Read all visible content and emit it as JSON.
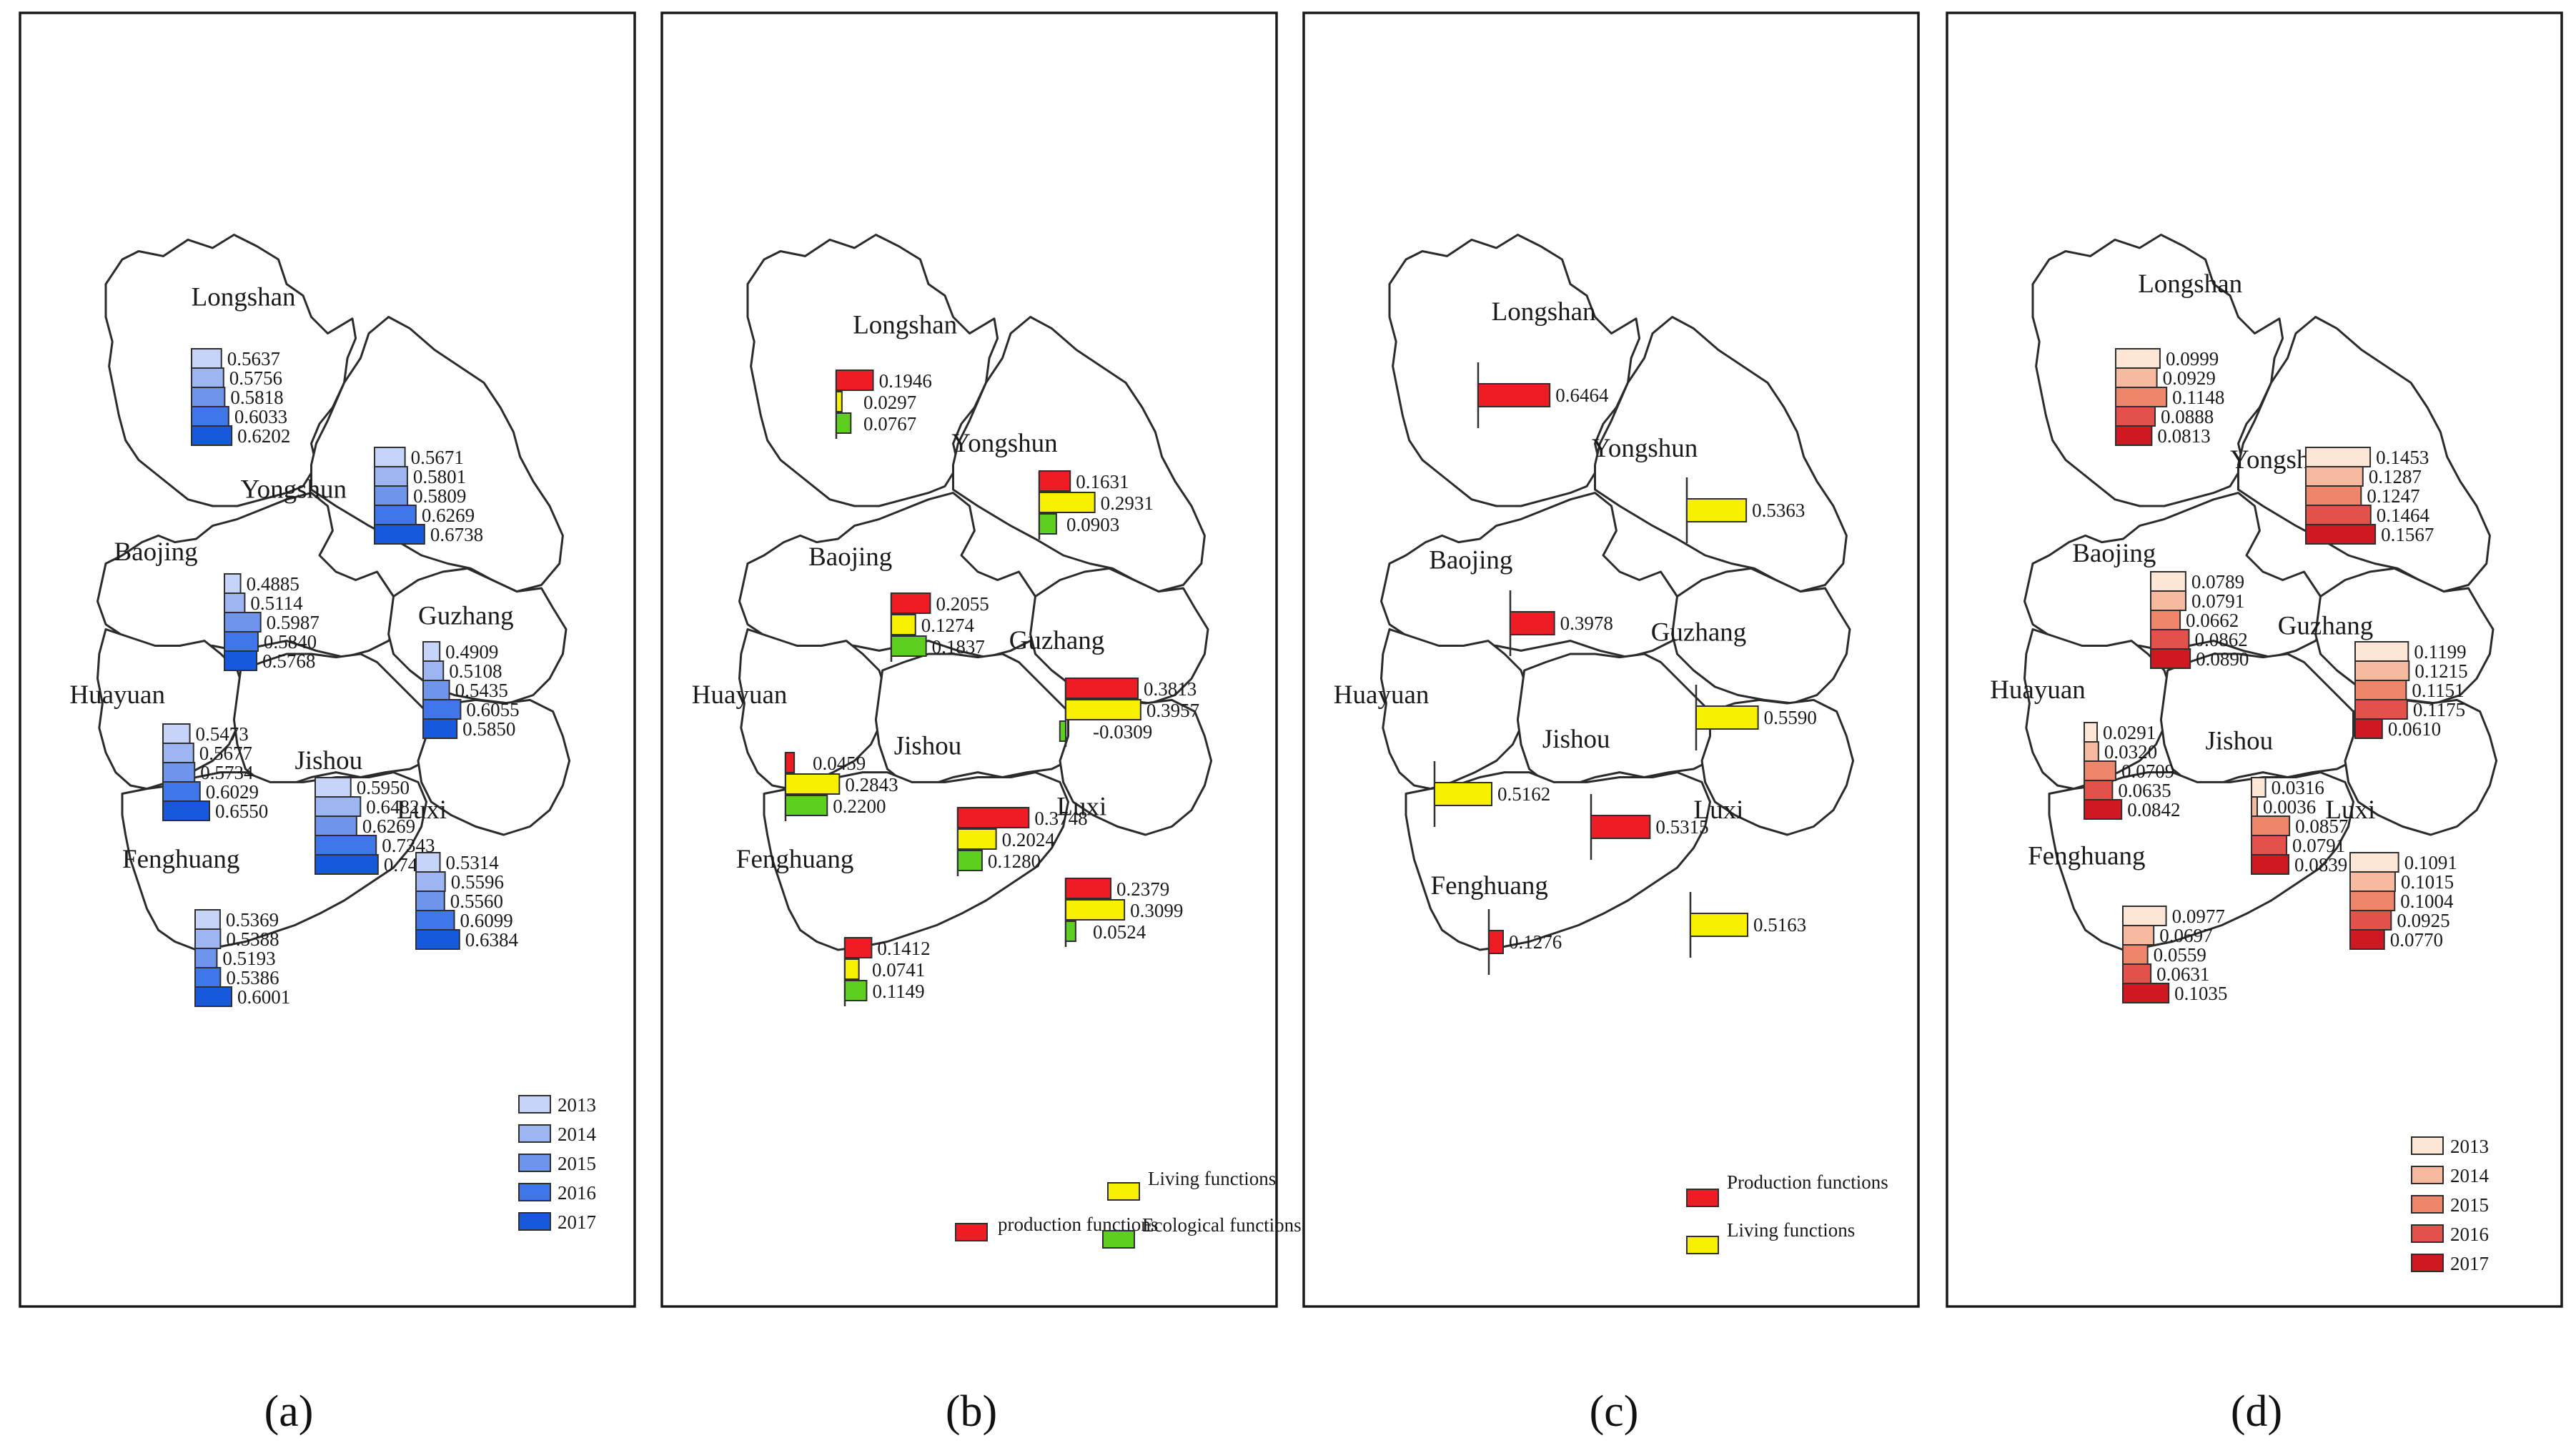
{
  "counties": [
    "Longshan",
    "Yongshun",
    "Baojing",
    "Guzhang",
    "Huayuan",
    "Jishou",
    "Luxi",
    "Fenghuang"
  ],
  "colors": {
    "blue_2013": "#c6d4fa",
    "blue_2014": "#9db6f3",
    "blue_2015": "#6e94ec",
    "blue_2016": "#3f76ea",
    "blue_2017": "#1659dd",
    "red_2013": "#fde6d6",
    "red_2014": "#f7b9a0",
    "red_2015": "#ef866c",
    "red_2016": "#e2524a",
    "red_2017": "#d01822",
    "production": "#ee1c24",
    "living": "#f7f000",
    "ecological": "#5fcf1f"
  },
  "panels": [
    {
      "id": "a",
      "caption": "(a)",
      "legend": [
        "2013",
        "2014",
        "2015",
        "2016",
        "2017"
      ],
      "chart_data": {
        "type": "bar",
        "series_names": [
          "2013",
          "2014",
          "2015",
          "2016",
          "2017"
        ],
        "values": {
          "Longshan": [
            "0.5637",
            "0.5756",
            "0.5818",
            "0.6033",
            "0.6202"
          ],
          "Yongshun": [
            "0.5671",
            "0.5801",
            "0.5809",
            "0.6269",
            "0.6738"
          ],
          "Baojing": [
            "0.4885",
            "0.5114",
            "0.5987",
            "0.5840",
            "0.5768"
          ],
          "Guzhang": [
            "0.4909",
            "0.5108",
            "0.5435",
            "0.6055",
            "0.5850"
          ],
          "Huayuan": [
            "0.5473",
            "0.5677",
            "0.5734",
            "0.6029",
            "0.6550"
          ],
          "Jishou": [
            "0.5950",
            "0.6482",
            "0.6269",
            "0.7343",
            "0.7444"
          ],
          "Luxi": [
            "0.5314",
            "0.5596",
            "0.5560",
            "0.6099",
            "0.6384"
          ],
          "Fenghuang": [
            "0.5369",
            "0.5388",
            "0.5193",
            "0.5386",
            "0.6001"
          ]
        }
      }
    },
    {
      "id": "b",
      "caption": "(b)",
      "legend": [
        "production functions",
        "Living functions",
        "Ecological functions"
      ],
      "chart_data": {
        "type": "bar",
        "series_names": [
          "production functions",
          "Living functions",
          "Ecological functions"
        ],
        "values": {
          "Longshan": [
            "0.1946",
            "0.0297",
            "0.0767"
          ],
          "Yongshun": [
            "0.1631",
            "0.2931",
            "0.0903"
          ],
          "Baojing": [
            "0.2055",
            "0.1274",
            "0.1837"
          ],
          "Guzhang": [
            "0.3813",
            "0.3957",
            "-0.0309"
          ],
          "Huayuan": [
            "0.0459",
            "0.2843",
            "0.2200"
          ],
          "Jishou": [
            "0.3748",
            "0.2024",
            "0.1280"
          ],
          "Luxi": [
            "0.2379",
            "0.3099",
            "0.0524"
          ],
          "Fenghuang": [
            "0.1412",
            "0.0741",
            "0.1149"
          ]
        }
      }
    },
    {
      "id": "c",
      "caption": "(c)",
      "legend": [
        "Production functions",
        "Living functions"
      ],
      "chart_data": {
        "type": "bar",
        "values": {
          "Longshan": {
            "function": "Production functions",
            "value": "0.6464"
          },
          "Yongshun": {
            "function": "Living functions",
            "value": "0.5363"
          },
          "Baojing": {
            "function": "Production functions",
            "value": "0.3978"
          },
          "Guzhang": {
            "function": "Living functions",
            "value": "0.5590"
          },
          "Huayuan": {
            "function": "Living functions",
            "value": "0.5162"
          },
          "Jishou": {
            "function": "Production functions",
            "value": "0.5315"
          },
          "Luxi": {
            "function": "Living functions",
            "value": "0.5163"
          },
          "Fenghuang": {
            "function": "Production functions",
            "value": "0.1276"
          }
        }
      }
    },
    {
      "id": "d",
      "caption": "(d)",
      "legend": [
        "2013",
        "2014",
        "2015",
        "2016",
        "2017"
      ],
      "chart_data": {
        "type": "bar",
        "series_names": [
          "2013",
          "2014",
          "2015",
          "2016",
          "2017"
        ],
        "values": {
          "Longshan": [
            "0.0999",
            "0.0929",
            "0.1148",
            "0.0888",
            "0.0813"
          ],
          "Yongshun": [
            "0.1453",
            "0.1287",
            "0.1247",
            "0.1464",
            "0.1567"
          ],
          "Baojing": [
            "0.0789",
            "0.0791",
            "0.0662",
            "0.0862",
            "0.0890"
          ],
          "Guzhang": [
            "0.1199",
            "0.1215",
            "0.1151",
            "0.1175",
            "0.0610"
          ],
          "Huayuan": [
            "0.0291",
            "0.0320",
            "0.0709",
            "0.0635",
            "0.0842"
          ],
          "Jishou": [
            "0.0316",
            "0.0036",
            "0.0857",
            "0.0791",
            "0.0839"
          ],
          "Luxi": [
            "0.1091",
            "0.1015",
            "0.1004",
            "0.0925",
            "0.0770"
          ],
          "Fenghuang": [
            "0.0977",
            "0.0697",
            "0.0559",
            "0.0631",
            "0.1035"
          ]
        }
      }
    }
  ]
}
